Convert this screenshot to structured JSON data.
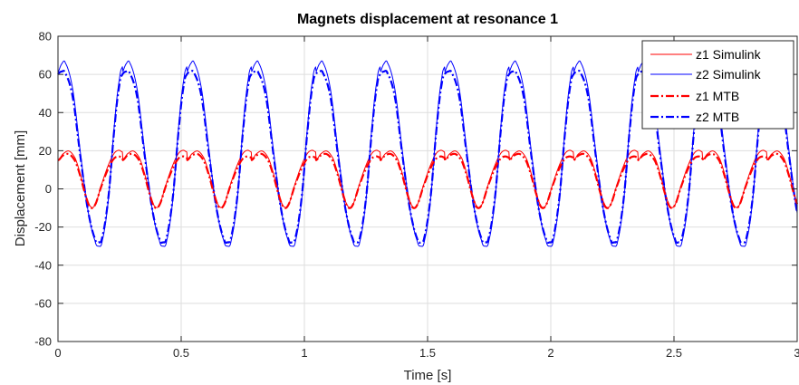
{
  "chart_data": {
    "type": "line",
    "title": "Magnets displacement at resonance 1",
    "xlabel": "Time [s]",
    "ylabel": "Displacement [mm]",
    "xlim": [
      0,
      3
    ],
    "ylim": [
      -80,
      80
    ],
    "x_ticks": [
      0,
      0.5,
      1,
      1.5,
      2,
      2.5,
      3
    ],
    "x_tick_labels": [
      "0",
      "0.5",
      "1",
      "1.5",
      "2",
      "2.5",
      "3"
    ],
    "y_ticks": [
      -80,
      -60,
      -40,
      -20,
      0,
      20,
      40,
      60,
      80
    ],
    "y_tick_labels": [
      "-80",
      "-60",
      "-40",
      "-20",
      "0",
      "20",
      "40",
      "60",
      "80"
    ],
    "grid": true,
    "legend_position": "top-right",
    "period_s": 0.2615,
    "series": [
      {
        "name": "z1 Simulink",
        "color": "#ff0000",
        "line_style": "solid",
        "line_width": 1,
        "x": [
          0,
          0.02,
          0.045,
          0.07,
          0.09,
          0.11,
          0.13,
          0.15,
          0.175,
          0.2,
          0.225,
          0.245,
          0.2615
        ],
        "y": [
          15.2,
          18.3,
          19.8,
          16,
          8,
          -2,
          -9,
          -8.5,
          1.5,
          11,
          18,
          20.2,
          19.3
        ]
      },
      {
        "name": "z2 Simulink",
        "color": "#0000ff",
        "line_style": "solid",
        "line_width": 1,
        "x": [
          0,
          0.015,
          0.03,
          0.06,
          0.09,
          0.12,
          0.15,
          0.165,
          0.18,
          0.205,
          0.23,
          0.25,
          0.2615
        ],
        "y": [
          61,
          65.5,
          66,
          52,
          20,
          -10,
          -27,
          -30,
          -27,
          -5,
          35,
          58,
          64
        ]
      },
      {
        "name": "z1 MTB",
        "color": "#ff0000",
        "line_style": "dash-dot",
        "line_width": 2.2,
        "x": [
          0,
          0.02,
          0.045,
          0.07,
          0.09,
          0.11,
          0.13,
          0.15,
          0.175,
          0.2,
          0.225,
          0.245,
          0.2615
        ],
        "y": [
          15,
          17.5,
          18.2,
          14.5,
          7,
          -2.5,
          -9.5,
          -8.5,
          1,
          9.5,
          15.5,
          17,
          16.5
        ]
      },
      {
        "name": "z2 MTB",
        "color": "#0000ff",
        "line_style": "dash-dot",
        "line_width": 2.2,
        "x": [
          0,
          0.015,
          0.03,
          0.06,
          0.09,
          0.12,
          0.15,
          0.165,
          0.18,
          0.205,
          0.23,
          0.25,
          0.2615
        ],
        "y": [
          60,
          61.5,
          60.5,
          48,
          18,
          -10,
          -26,
          -28,
          -25,
          -4,
          33,
          55,
          60
        ]
      }
    ]
  }
}
